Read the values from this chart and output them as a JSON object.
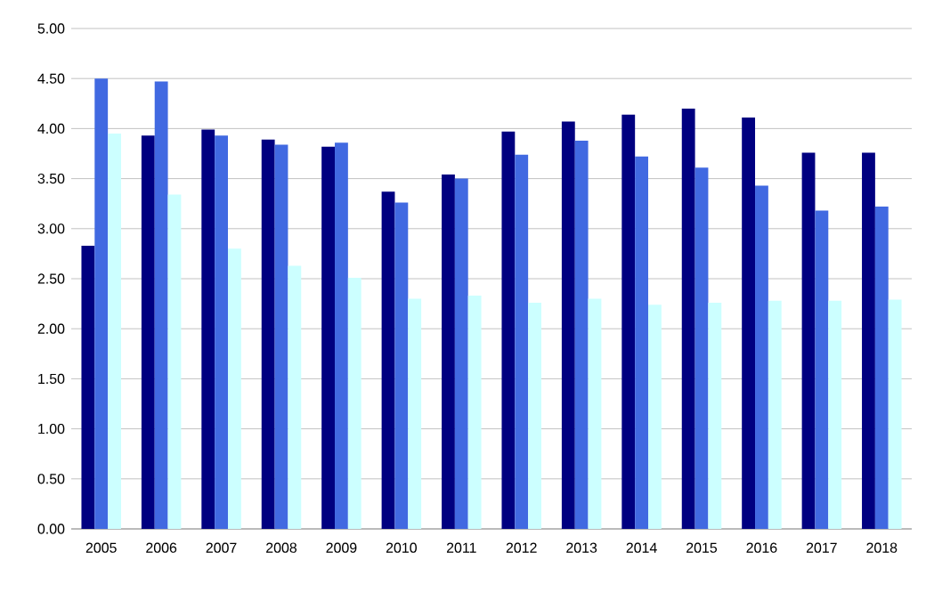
{
  "chart_data": {
    "type": "bar",
    "categories": [
      "2005",
      "2006",
      "2007",
      "2008",
      "2009",
      "2010",
      "2011",
      "2012",
      "2013",
      "2014",
      "2015",
      "2016",
      "2017",
      "2018"
    ],
    "series": [
      {
        "color": "#000080",
        "values": [
          2.83,
          3.93,
          3.99,
          3.89,
          3.82,
          3.37,
          3.54,
          3.97,
          4.07,
          4.14,
          4.2,
          4.11,
          3.76,
          3.76
        ]
      },
      {
        "color": "#4169e1",
        "values": [
          4.5,
          4.47,
          3.93,
          3.84,
          3.86,
          3.26,
          3.5,
          3.74,
          3.88,
          3.72,
          3.61,
          3.43,
          3.18,
          3.22
        ]
      },
      {
        "color": "#ccffff",
        "values": [
          3.95,
          3.34,
          2.8,
          2.63,
          2.51,
          2.3,
          2.33,
          2.26,
          2.3,
          2.24,
          2.26,
          2.28,
          2.28,
          2.29
        ]
      }
    ],
    "ylim": [
      0,
      5
    ],
    "yticks": [
      {
        "value": 0,
        "label": "0.00"
      },
      {
        "value": 0.5,
        "label": "0.50"
      },
      {
        "value": 1,
        "label": "1.00"
      },
      {
        "value": 1.5,
        "label": "1.50"
      },
      {
        "value": 2,
        "label": "2.00"
      },
      {
        "value": 2.5,
        "label": "2.50"
      },
      {
        "value": 3,
        "label": "3.00"
      },
      {
        "value": 3.5,
        "label": "3.50"
      },
      {
        "value": 4,
        "label": "4.00"
      },
      {
        "value": 4.5,
        "label": "4.50"
      },
      {
        "value": 5,
        "label": "5.00"
      }
    ],
    "grid": "y"
  }
}
